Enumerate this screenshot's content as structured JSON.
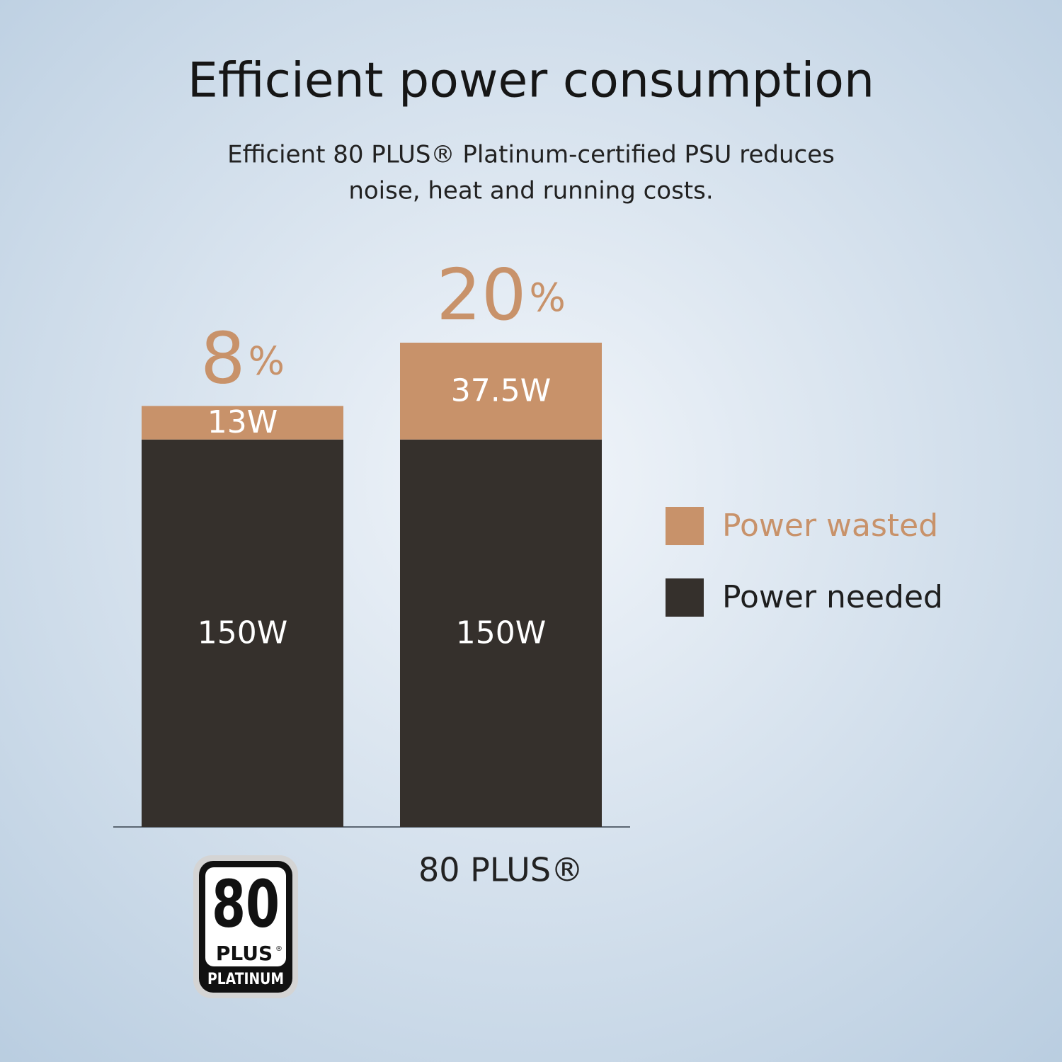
{
  "chart_data": {
    "type": "stacked-bar",
    "title": "Efficient power consumption",
    "subtitle": [
      "Efficient 80 PLUS® Platinum-certified PSU reduces",
      "noise, heat and running costs."
    ],
    "categories": [
      null,
      "80 PLUS®"
    ],
    "badge": {
      "number": "80",
      "plus": "PLUS",
      "registered": "®",
      "tier": "PLATINUM"
    },
    "series": [
      {
        "name": "Power needed",
        "color": "#35302c",
        "values": [
          150,
          150
        ],
        "value_labels": [
          "150W",
          "150W"
        ]
      },
      {
        "name": "Power wasted",
        "color": "#c8926a",
        "values": [
          13,
          37.5
        ],
        "value_labels": [
          "13W",
          "37.5W"
        ]
      }
    ],
    "share_labels": [
      {
        "number": "8",
        "unit": "%"
      },
      {
        "number": "20",
        "unit": "%"
      }
    ]
  }
}
